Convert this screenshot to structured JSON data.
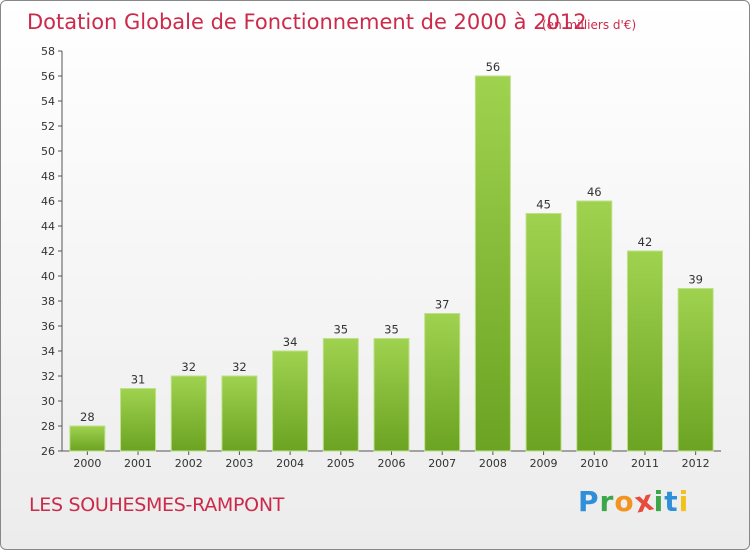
{
  "chart_data": {
    "type": "bar",
    "title": "Dotation Globale de Fonctionnement de 2000 à 2012",
    "subtitle": "(en milliers d'€)",
    "categories": [
      "2000",
      "2001",
      "2002",
      "2003",
      "2004",
      "2005",
      "2006",
      "2007",
      "2008",
      "2009",
      "2010",
      "2011",
      "2012"
    ],
    "values": [
      28,
      31,
      32,
      32,
      34,
      35,
      35,
      37,
      56,
      45,
      46,
      42,
      39
    ],
    "ylim": [
      26,
      58
    ],
    "yticks": [
      "26",
      "28",
      "30",
      "32",
      "34",
      "36",
      "38",
      "40",
      "42",
      "44",
      "46",
      "48",
      "50",
      "52",
      "54",
      "56",
      "58"
    ],
    "grid": false,
    "bar_color": "#7ab52e"
  },
  "commune": "LES SOUHESMES-RAMPONT",
  "logo": {
    "letters": [
      "P",
      "r",
      "o",
      "x",
      "i",
      "t",
      "i"
    ],
    "colors": [
      "#2f8fd8",
      "#3ca64a",
      "#f29422",
      "#e84b3c",
      "#3ca64a",
      "#2f8fd8",
      "#f2c21b"
    ]
  }
}
